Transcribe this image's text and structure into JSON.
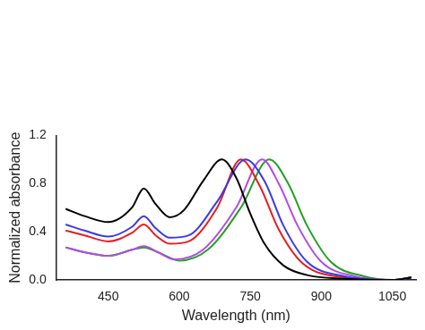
{
  "chart_data": {
    "type": "line",
    "x_label": "Wavelength (nm)",
    "y_label": "Normalized absorbance",
    "xlim": [
      340,
      1100
    ],
    "xticks": [
      450,
      600,
      750,
      900,
      1050
    ],
    "ylim": [
      0,
      1.2
    ],
    "yticks": [
      {
        "value": 0,
        "label": "0.0"
      },
      {
        "value": 0.4,
        "label": "0.4"
      },
      {
        "value": 0.8,
        "label": "0.8"
      },
      {
        "value": 1.2,
        "label": "1.2"
      }
    ],
    "grid": false,
    "series": [
      {
        "color": "#000000",
        "x": [
          360,
          400,
          450,
          500,
          525,
          550,
          580,
          610,
          650,
          690,
          720,
          750,
          780,
          820,
          870,
          950,
          1050,
          1090
        ],
        "values": [
          0.59,
          0.53,
          0.48,
          0.6,
          0.76,
          0.63,
          0.52,
          0.58,
          0.82,
          1.0,
          0.85,
          0.55,
          0.3,
          0.12,
          0.04,
          0.01,
          0.0,
          0.02
        ]
      },
      {
        "color": "#3a3ae6",
        "x": [
          360,
          400,
          450,
          500,
          525,
          550,
          580,
          620,
          680,
          740,
          780,
          820,
          870,
          950,
          1050,
          1090
        ],
        "values": [
          0.46,
          0.41,
          0.36,
          0.44,
          0.53,
          0.43,
          0.35,
          0.37,
          0.65,
          1.0,
          0.82,
          0.45,
          0.15,
          0.03,
          0.0,
          0.02
        ]
      },
      {
        "color": "#e61e1e",
        "x": [
          360,
          400,
          450,
          500,
          525,
          550,
          580,
          620,
          680,
          730,
          770,
          810,
          860,
          950,
          1050,
          1090
        ],
        "values": [
          0.41,
          0.37,
          0.32,
          0.39,
          0.46,
          0.37,
          0.3,
          0.32,
          0.6,
          1.0,
          0.78,
          0.42,
          0.14,
          0.02,
          0.0,
          0.02
        ]
      },
      {
        "color": "#b44ae6",
        "x": [
          360,
          400,
          450,
          500,
          525,
          555,
          590,
          650,
          720,
          775,
          810,
          850,
          900,
          970,
          1050,
          1090
        ],
        "values": [
          0.27,
          0.23,
          0.2,
          0.25,
          0.28,
          0.23,
          0.17,
          0.25,
          0.6,
          1.0,
          0.8,
          0.45,
          0.15,
          0.03,
          0.0,
          0.02
        ]
      },
      {
        "color": "#22a022",
        "x": [
          360,
          400,
          450,
          500,
          525,
          560,
          600,
          660,
          730,
          790,
          830,
          870,
          920,
          990,
          1050,
          1090
        ],
        "values": [
          0.27,
          0.23,
          0.2,
          0.25,
          0.27,
          0.22,
          0.16,
          0.25,
          0.6,
          1.0,
          0.8,
          0.45,
          0.15,
          0.03,
          0.0,
          0.02
        ]
      }
    ]
  }
}
